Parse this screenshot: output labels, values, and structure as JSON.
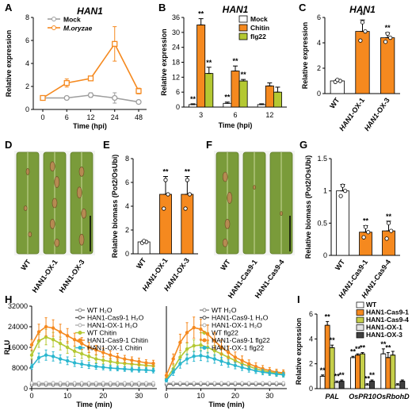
{
  "colors": {
    "mock_gray": "#9e9e9e",
    "orange": "#f5891f",
    "yellowgreen": "#b4c832",
    "teal": "#2bb7cf",
    "wt_white": "#ffffff",
    "cas94": "#c6cf4a",
    "ox1": "#e5e5e5",
    "ox3": "#404040",
    "leaf_green": "#7a9b3a"
  },
  "panel_labels": [
    "A",
    "B",
    "C",
    "D",
    "E",
    "F",
    "G",
    "H",
    "I"
  ],
  "photos": {
    "D": {
      "labels": [
        "WT",
        "HAN1-OX-1",
        "HAN1-OX-3"
      ]
    },
    "F": {
      "labels": [
        "WT",
        "HAN1-Cas9-1",
        "HAN1-Cas9-4"
      ]
    }
  },
  "chart_data": [
    {
      "panel": "A",
      "type": "line",
      "title": "HAN1",
      "xlabel": "Time (hpi)",
      "ylabel": "Relative expression",
      "categories": [
        "0",
        "6",
        "12",
        "24",
        "48"
      ],
      "ylim": [
        0,
        8
      ],
      "yticks": [
        0,
        2,
        4,
        6,
        8
      ],
      "series": [
        {
          "name": "Mock",
          "values": [
            1.0,
            1.0,
            1.25,
            1.0,
            0.65
          ],
          "errors": [
            0.15,
            0.1,
            0.2,
            0.45,
            0.15
          ]
        },
        {
          "name": "M.oryzae",
          "values": [
            1.0,
            2.3,
            2.7,
            5.7,
            1.6
          ],
          "errors": [
            0.15,
            0.35,
            0.2,
            1.5,
            0.25
          ]
        }
      ]
    },
    {
      "panel": "B",
      "type": "bar",
      "title": "HAN1",
      "xlabel": "Time (hpi)",
      "ylabel": "Relative expression",
      "categories": [
        "3",
        "6",
        "12"
      ],
      "ylim": [
        0,
        36
      ],
      "yticks": [
        0,
        6,
        12,
        18,
        24,
        30,
        36
      ],
      "series": [
        {
          "name": "Mock",
          "values": [
            1,
            1.5,
            1
          ],
          "errors": [
            0.3,
            0.5,
            0.3
          ]
        },
        {
          "name": "Chitin",
          "values": [
            33,
            14.5,
            8.5
          ],
          "errors": [
            2.5,
            2,
            1.2
          ]
        },
        {
          "name": "flg22",
          "values": [
            13.5,
            10.5,
            6
          ],
          "errors": [
            2.5,
            0.6,
            2
          ]
        }
      ],
      "annotations": [
        "**",
        "**",
        "**",
        "**",
        "**",
        "**"
      ]
    },
    {
      "panel": "C",
      "type": "bar",
      "title": "HAN1",
      "ylabel": "Relative expression",
      "categories": [
        "WT",
        "HAN1-OX-1",
        "HAN1-OX-3"
      ],
      "ylim": [
        0,
        6
      ],
      "yticks": [
        0,
        2,
        4,
        6
      ],
      "values": [
        1.0,
        4.9,
        4.4
      ],
      "errors": [
        0.1,
        0.9,
        0.4
      ],
      "annotations": [
        "",
        "**",
        "**"
      ]
    },
    {
      "panel": "E",
      "type": "bar",
      "ylabel": "Relative biomass (Pot2/OsUbi)",
      "categories": [
        "WT",
        "HAN1-OX-1",
        "HAN1-OX-3"
      ],
      "ylim": [
        0,
        8
      ],
      "yticks": [
        0,
        2,
        4,
        6,
        8
      ],
      "values": [
        1.0,
        5.0,
        5.0
      ],
      "errors": [
        0.1,
        1.5,
        1.5
      ],
      "annotations": [
        "",
        "**",
        "**"
      ]
    },
    {
      "panel": "G",
      "type": "bar",
      "ylabel": "Relative biomass (Pot2/OsUbi)",
      "categories": [
        "WT",
        "HAN1-Cas9-1",
        "HAN1-Cas9-4"
      ],
      "ylim": [
        0,
        1.5
      ],
      "yticks": [
        0.0,
        0.5,
        1.0,
        1.5
      ],
      "values": [
        1.0,
        0.36,
        0.38
      ],
      "errors": [
        0.1,
        0.1,
        0.15
      ],
      "annotations": [
        "",
        "**",
        "**"
      ]
    },
    {
      "panel": "H1",
      "type": "line",
      "xlabel": "Time (min)",
      "ylabel": "RLU",
      "xlim": [
        0,
        35
      ],
      "xticks": [
        0,
        10,
        20,
        30
      ],
      "ylim": [
        0,
        32000
      ],
      "yticks": [
        0,
        8000,
        16000,
        24000,
        32000
      ],
      "ytick_labels": [
        "0",
        "8000",
        "16000",
        "24000",
        "32000"
      ],
      "x": [
        0,
        2,
        4,
        6,
        8,
        10,
        12,
        14,
        16,
        18,
        20,
        22,
        24,
        26,
        28,
        30,
        32,
        34
      ],
      "series": [
        {
          "name": "WT H₂O",
          "values": [
            2000,
            2000,
            2000,
            2000,
            2000,
            2000,
            2000,
            2000,
            2000,
            2000,
            2000,
            2000,
            2000,
            2000,
            2000,
            2000,
            2000,
            2000
          ]
        },
        {
          "name": "HAN1-Cas9-1 H₂O",
          "values": [
            1500,
            1500,
            1500,
            1500,
            1500,
            1500,
            1500,
            1500,
            1500,
            1500,
            1500,
            1500,
            1500,
            1500,
            1500,
            1500,
            1500,
            1500
          ]
        },
        {
          "name": "HAN1-OX-1 H₂O",
          "values": [
            2200,
            2200,
            2200,
            2200,
            2200,
            2200,
            2200,
            2200,
            2200,
            2200,
            2200,
            2200,
            2200,
            2200,
            2200,
            2200,
            2200,
            2200
          ]
        },
        {
          "name": "WT Chitin",
          "values": [
            13000,
            18500,
            20000,
            19000,
            17500,
            16000,
            14500,
            13500,
            12500,
            11500,
            11000,
            10500,
            10000,
            9800,
            9500,
            9300,
            9000,
            8800
          ]
        },
        {
          "name": "HAN1-Cas9-1 Chitin",
          "values": [
            17000,
            22000,
            24000,
            23500,
            22000,
            20500,
            19000,
            17500,
            16000,
            15000,
            14000,
            13000,
            12200,
            11500,
            11000,
            10500,
            10000,
            9800
          ]
        },
        {
          "name": "HAN1-OX-1 Chitin",
          "values": [
            8500,
            12000,
            13000,
            12500,
            11500,
            10800,
            10000,
            9500,
            9000,
            8600,
            8300,
            8000,
            7800,
            7600,
            7400,
            7300,
            7200,
            7000
          ]
        }
      ],
      "errors": [
        [
          500,
          500,
          500,
          500,
          500,
          500,
          500,
          500,
          500,
          500,
          500,
          500,
          500,
          500,
          500,
          500,
          500,
          500
        ],
        [
          500,
          500,
          500,
          500,
          500,
          500,
          500,
          500,
          500,
          500,
          500,
          500,
          500,
          500,
          500,
          500,
          500,
          500
        ],
        [
          500,
          500,
          500,
          500,
          500,
          500,
          500,
          500,
          500,
          500,
          500,
          500,
          500,
          500,
          500,
          500,
          500,
          500
        ],
        [
          1500,
          2500,
          3000,
          2800,
          2500,
          2300,
          2000,
          1800,
          1600,
          1500,
          1400,
          1300,
          1200,
          1200,
          1100,
          1100,
          1000,
          1000
        ],
        [
          2000,
          3000,
          3500,
          3200,
          3000,
          2800,
          2500,
          2300,
          2000,
          1800,
          1700,
          1600,
          1500,
          1400,
          1300,
          1300,
          1200,
          1200
        ],
        [
          1000,
          1800,
          2000,
          1800,
          1600,
          1500,
          1400,
          1300,
          1200,
          1100,
          1000,
          1000,
          900,
          900,
          900,
          900,
          900,
          900
        ]
      ]
    },
    {
      "panel": "H2",
      "type": "line",
      "xlabel": "Time (min)",
      "xlim": [
        0,
        35
      ],
      "xticks": [
        0,
        10,
        20,
        30
      ],
      "ylim": [
        0,
        25000
      ],
      "x": [
        0,
        2,
        4,
        6,
        8,
        10,
        12,
        14,
        16,
        18,
        20,
        22,
        24,
        26,
        28,
        30,
        32,
        34
      ],
      "series": [
        {
          "name": "WT H₂O",
          "values": [
            1500,
            1500,
            1500,
            1500,
            1500,
            1500,
            1500,
            1500,
            1500,
            1500,
            1500,
            1500,
            1500,
            1500,
            1500,
            1500,
            1500,
            1500
          ]
        },
        {
          "name": "HAN1-Cas9-1 H₂O",
          "values": [
            1300,
            1300,
            1300,
            1300,
            1300,
            1300,
            1300,
            1300,
            1300,
            1300,
            1300,
            1300,
            1300,
            1300,
            1300,
            1300,
            1300,
            1300
          ]
        },
        {
          "name": "HAN1-OX-1 H₂O",
          "values": [
            1700,
            1700,
            1700,
            1700,
            1700,
            1700,
            1700,
            1700,
            1700,
            1700,
            1700,
            1700,
            1700,
            1700,
            1700,
            1700,
            1700,
            1700
          ]
        },
        {
          "name": "WT flg22",
          "values": [
            3000,
            6000,
            9500,
            12000,
            13000,
            13200,
            12500,
            11500,
            10500,
            9500,
            8500,
            7500,
            6800,
            6000,
            5500,
            5000,
            4700,
            4500
          ]
        },
        {
          "name": "HAN1-Cas9-1 flg22",
          "values": [
            4000,
            9000,
            14000,
            17000,
            18500,
            18000,
            16500,
            14500,
            12500,
            11000,
            9500,
            8500,
            7500,
            6700,
            6000,
            5500,
            5000,
            4800
          ]
        },
        {
          "name": "HAN1-OX-1 flg22",
          "values": [
            2500,
            5000,
            7500,
            9000,
            9800,
            10000,
            9600,
            9000,
            8300,
            7600,
            7000,
            6400,
            5900,
            5400,
            5000,
            4700,
            4400,
            4200
          ]
        }
      ],
      "errors": [
        [
          400,
          400,
          400,
          400,
          400,
          400,
          400,
          400,
          400,
          400,
          400,
          400,
          400,
          400,
          400,
          400,
          400,
          400
        ],
        [
          400,
          400,
          400,
          400,
          400,
          400,
          400,
          400,
          400,
          400,
          400,
          400,
          400,
          400,
          400,
          400,
          400,
          400
        ],
        [
          400,
          400,
          400,
          400,
          400,
          400,
          400,
          400,
          400,
          400,
          400,
          400,
          400,
          400,
          400,
          400,
          400,
          400
        ],
        [
          600,
          1200,
          1500,
          1800,
          1800,
          1800,
          1700,
          1600,
          1500,
          1400,
          1200,
          1100,
          1000,
          900,
          900,
          800,
          800,
          800
        ],
        [
          800,
          1500,
          2500,
          3000,
          3200,
          3000,
          2800,
          2500,
          2200,
          1900,
          1600,
          1400,
          1200,
          1100,
          1000,
          900,
          900,
          900
        ],
        [
          500,
          1000,
          1300,
          1500,
          1500,
          1500,
          1400,
          1300,
          1200,
          1100,
          1000,
          900,
          900,
          800,
          800,
          700,
          700,
          700
        ]
      ]
    },
    {
      "panel": "I",
      "type": "bar",
      "ylabel": "Relative expression",
      "categories": [
        "PAL",
        "OsPR10",
        "OsRbohD"
      ],
      "ylim": [
        0,
        6
      ],
      "yticks": [
        0,
        2,
        4,
        6
      ],
      "series": [
        {
          "name": "WT",
          "values": [
            1.0,
            2.5,
            2.8
          ],
          "errors": [
            0.1,
            0.1,
            0.4
          ]
        },
        {
          "name": "HAN1-Cas9-1",
          "values": [
            5.1,
            2.7,
            2.5
          ],
          "errors": [
            0.3,
            0.1,
            0.4
          ]
        },
        {
          "name": "HAN1-Cas9-4",
          "values": [
            3.3,
            2.8,
            2.7
          ],
          "errors": [
            0.2,
            0.1,
            0.3
          ]
        },
        {
          "name": "HAN1-OX-1",
          "values": [
            0.5,
            0.3,
            0.3
          ],
          "errors": [
            0.1,
            0.1,
            0.1
          ]
        },
        {
          "name": "HAN1-OX-3",
          "values": [
            0.6,
            0.6,
            0.6
          ],
          "errors": [
            0.1,
            0.1,
            0.1
          ]
        }
      ],
      "annotations": [
        "**",
        "**",
        "**",
        "**",
        "**",
        "**",
        "**",
        "**",
        "**",
        "**",
        "**",
        "**"
      ]
    }
  ]
}
